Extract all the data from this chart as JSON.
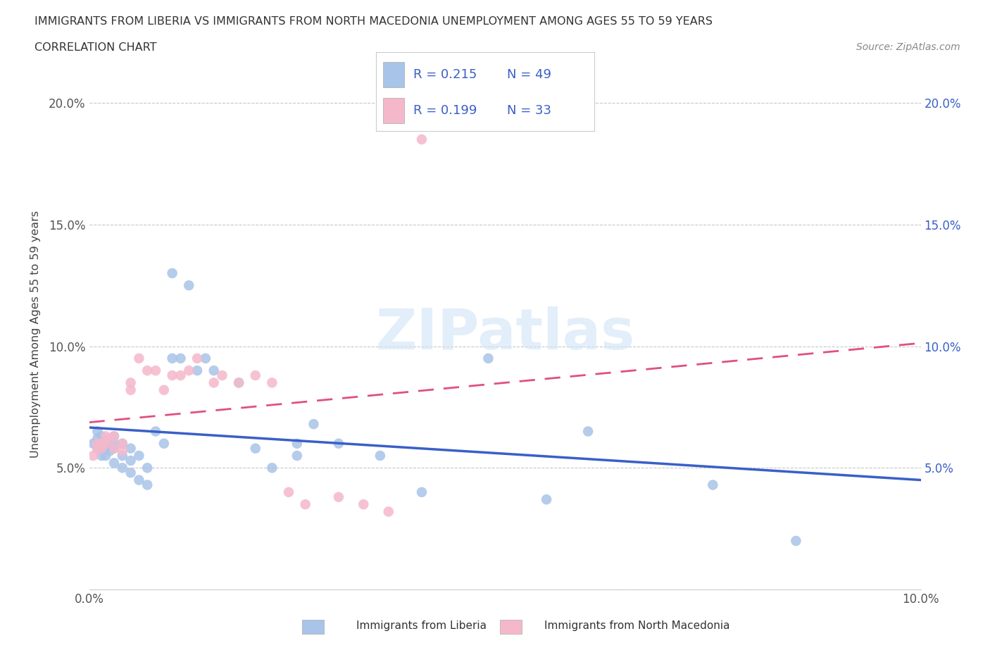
{
  "title_line1": "IMMIGRANTS FROM LIBERIA VS IMMIGRANTS FROM NORTH MACEDONIA UNEMPLOYMENT AMONG AGES 55 TO 59 YEARS",
  "title_line2": "CORRELATION CHART",
  "source_text": "Source: ZipAtlas.com",
  "ylabel": "Unemployment Among Ages 55 to 59 years",
  "xlim": [
    0.0,
    0.1
  ],
  "ylim": [
    0.0,
    0.21
  ],
  "liberia_color": "#a8c4e8",
  "north_mac_color": "#f5b8cb",
  "liberia_line_color": "#3a5fc8",
  "north_mac_line_color": "#e05080",
  "legend_text_color": "#3a5fc8",
  "watermark_color": "#d0e4f5",
  "grid_color": "#c8c8c8",
  "background_color": "#ffffff",
  "liberia_x": [
    0.0005,
    0.001,
    0.001,
    0.001,
    0.0015,
    0.0015,
    0.0015,
    0.002,
    0.002,
    0.002,
    0.0025,
    0.0025,
    0.003,
    0.003,
    0.003,
    0.003,
    0.004,
    0.004,
    0.004,
    0.005,
    0.005,
    0.005,
    0.006,
    0.006,
    0.007,
    0.007,
    0.008,
    0.009,
    0.01,
    0.01,
    0.011,
    0.012,
    0.013,
    0.014,
    0.015,
    0.018,
    0.02,
    0.022,
    0.025,
    0.025,
    0.027,
    0.03,
    0.035,
    0.04,
    0.048,
    0.055,
    0.06,
    0.075,
    0.085
  ],
  "liberia_y": [
    0.06,
    0.058,
    0.062,
    0.065,
    0.055,
    0.06,
    0.063,
    0.055,
    0.06,
    0.058,
    0.057,
    0.062,
    0.052,
    0.058,
    0.06,
    0.063,
    0.05,
    0.055,
    0.06,
    0.048,
    0.053,
    0.058,
    0.045,
    0.055,
    0.043,
    0.05,
    0.065,
    0.06,
    0.095,
    0.13,
    0.095,
    0.125,
    0.09,
    0.095,
    0.09,
    0.085,
    0.058,
    0.05,
    0.06,
    0.055,
    0.068,
    0.06,
    0.055,
    0.04,
    0.095,
    0.037,
    0.065,
    0.043,
    0.02
  ],
  "north_mac_x": [
    0.0005,
    0.001,
    0.001,
    0.0015,
    0.0015,
    0.002,
    0.002,
    0.0025,
    0.003,
    0.003,
    0.004,
    0.004,
    0.005,
    0.005,
    0.006,
    0.007,
    0.008,
    0.009,
    0.01,
    0.011,
    0.012,
    0.013,
    0.015,
    0.016,
    0.018,
    0.02,
    0.022,
    0.024,
    0.026,
    0.03,
    0.033,
    0.036,
    0.04
  ],
  "north_mac_y": [
    0.055,
    0.06,
    0.058,
    0.058,
    0.06,
    0.06,
    0.063,
    0.062,
    0.058,
    0.063,
    0.057,
    0.06,
    0.082,
    0.085,
    0.095,
    0.09,
    0.09,
    0.082,
    0.088,
    0.088,
    0.09,
    0.095,
    0.085,
    0.088,
    0.085,
    0.088,
    0.085,
    0.04,
    0.035,
    0.038,
    0.035,
    0.032,
    0.185
  ]
}
